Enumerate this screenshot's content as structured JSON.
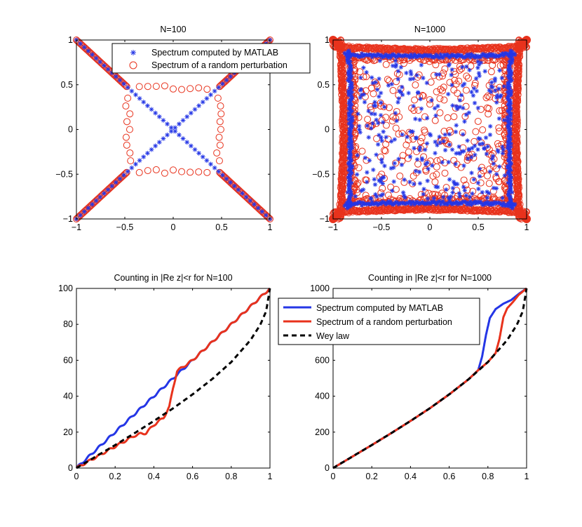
{
  "colors": {
    "matlab": "#2436e6",
    "perturb": "#e8321c",
    "weyl": "#000000"
  },
  "chart_data": [
    {
      "id": "p1",
      "type": "scatter",
      "title": "N=100",
      "xlim": [
        -1,
        1
      ],
      "ylim": [
        -1,
        1
      ],
      "xticks": [
        "-1",
        "-0.5",
        "0",
        "0.5",
        "1"
      ],
      "yticks": [
        "-1",
        "-0.5",
        "0",
        "0.5",
        "1"
      ],
      "legend": {
        "position": "top-right",
        "entries": [
          "Spectrum computed by MATLAB",
          "Spectrum of a random perturbation"
        ]
      },
      "series": [
        {
          "name": "Spectrum computed by MATLAB",
          "marker": "asterisk",
          "pattern": "diagonal-X",
          "n": 100
        },
        {
          "name": "Spectrum of a random perturbation",
          "marker": "circle",
          "pattern": "diagonals plus inner square ring",
          "ring_halfwidth": 0.47,
          "n": 100
        }
      ]
    },
    {
      "id": "p2",
      "type": "scatter",
      "title": "N=1000",
      "xlim": [
        -1,
        1
      ],
      "ylim": [
        -1,
        1
      ],
      "xticks": [
        "-1",
        "-0.5",
        "0",
        "0.5",
        "1"
      ],
      "yticks": [
        "-1",
        "-0.5",
        "0",
        "0.5",
        "1"
      ],
      "series": [
        {
          "name": "Spectrum computed by MATLAB",
          "marker": "asterisk",
          "pattern": "square band near |Re|,|Im|=0.85 plus interior scatter"
        },
        {
          "name": "Spectrum of a random perturbation",
          "marker": "circle",
          "pattern": "dense square boundary near 0.95 plus interior scatter"
        }
      ]
    },
    {
      "id": "p3",
      "type": "line",
      "title": "Counting in |Re z|<r for N=100",
      "xlim": [
        0,
        1
      ],
      "ylim": [
        0,
        100
      ],
      "xticks": [
        "0",
        "0.2",
        "0.4",
        "0.6",
        "0.8",
        "1"
      ],
      "yticks": [
        "0",
        "20",
        "40",
        "60",
        "80",
        "100"
      ],
      "series": [
        {
          "name": "Spectrum computed by MATLAB",
          "x": [
            0,
            0.1,
            0.2,
            0.3,
            0.4,
            0.5,
            0.6,
            0.7,
            0.8,
            0.9,
            1.0
          ],
          "y": [
            0,
            10,
            20,
            30,
            40,
            50,
            60,
            70,
            80,
            90,
            100
          ]
        },
        {
          "name": "Spectrum of a random perturbation",
          "x": [
            0,
            0.1,
            0.2,
            0.3,
            0.33,
            0.36,
            0.4,
            0.45,
            0.48,
            0.5,
            0.52,
            0.6,
            0.7,
            0.8,
            0.9,
            1.0
          ],
          "y": [
            0,
            6,
            12,
            18,
            19,
            19.5,
            24,
            28,
            34,
            45,
            54,
            60,
            70,
            80,
            90,
            100
          ]
        },
        {
          "name": "Wey law",
          "x": [
            0,
            0.1,
            0.2,
            0.3,
            0.4,
            0.5,
            0.6,
            0.7,
            0.8,
            0.9,
            0.95,
            0.98,
            1.0
          ],
          "y": [
            0,
            6.4,
            12.8,
            19.4,
            26.2,
            33.3,
            41.0,
            49.4,
            59.0,
            71.3,
            79.8,
            87.2,
            100
          ]
        }
      ]
    },
    {
      "id": "p4",
      "type": "line",
      "title": "Counting in |Re z|<r for N=1000",
      "xlim": [
        0,
        1
      ],
      "ylim": [
        0,
        1000
      ],
      "xticks": [
        "0",
        "0.2",
        "0.4",
        "0.6",
        "0.8",
        "1"
      ],
      "yticks": [
        "0",
        "200",
        "400",
        "600",
        "800",
        "1000"
      ],
      "legend": {
        "position": "top-left",
        "entries": [
          "Spectrum computed by MATLAB",
          "Spectrum of a random perturbation",
          "Wey law"
        ]
      },
      "series": [
        {
          "name": "Spectrum computed by MATLAB",
          "x": [
            0,
            0.1,
            0.2,
            0.3,
            0.4,
            0.5,
            0.6,
            0.7,
            0.75,
            0.77,
            0.79,
            0.81,
            0.84,
            0.88,
            0.92,
            0.96,
            1.0
          ],
          "y": [
            0,
            64,
            128,
            194,
            262,
            333,
            410,
            494,
            545,
            620,
            740,
            835,
            885,
            915,
            935,
            970,
            1000
          ]
        },
        {
          "name": "Spectrum of a random perturbation",
          "x": [
            0,
            0.1,
            0.2,
            0.3,
            0.4,
            0.5,
            0.6,
            0.7,
            0.75,
            0.8,
            0.84,
            0.86,
            0.88,
            0.9,
            0.93,
            0.96,
            1.0
          ],
          "y": [
            0,
            64,
            128,
            194,
            262,
            333,
            410,
            494,
            545,
            590,
            640,
            720,
            840,
            890,
            925,
            965,
            1000
          ]
        },
        {
          "name": "Wey law",
          "x": [
            0,
            0.1,
            0.2,
            0.3,
            0.4,
            0.5,
            0.6,
            0.7,
            0.8,
            0.9,
            0.95,
            0.98,
            1.0
          ],
          "y": [
            0,
            64,
            128,
            194,
            262,
            333,
            410,
            494,
            590,
            713,
            798,
            872,
            1000
          ]
        }
      ]
    }
  ]
}
